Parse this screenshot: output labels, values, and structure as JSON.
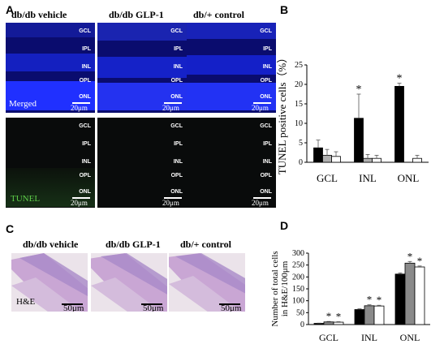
{
  "panels": {
    "a": {
      "label": "A",
      "columns": [
        "db/db vehicle",
        "db/db GLP-1",
        "db/+ control"
      ],
      "layers": [
        "GCL",
        "IPL",
        "INL",
        "OPL",
        "ONL"
      ],
      "row_labels": [
        "Merged",
        "TUNEL"
      ],
      "scale": "20μm",
      "colors": {
        "merged": "#0a0c6e",
        "nuclei": "#1f2dff",
        "tunel_text": "#5fcf4a"
      }
    },
    "b": {
      "label": "B"
    },
    "c": {
      "label": "C",
      "columns": [
        "db/db vehicle",
        "db/db GLP-1",
        "db/+ control"
      ],
      "stain_label": "H&E",
      "scale": "50μm",
      "colors": {
        "tissue": "#c9a6d4",
        "band": "#a989c8"
      }
    },
    "d": {
      "label": "D"
    }
  },
  "chart_data": [
    {
      "type": "bar",
      "panel": "B",
      "categories": [
        "GCL",
        "INL",
        "ONL"
      ],
      "ylabel": "TUNEL positive cells（%）",
      "ylim": [
        0,
        25
      ],
      "yticks": [
        0,
        5,
        10,
        15,
        20,
        25
      ],
      "series": [
        {
          "values": [
            3.7,
            11.3,
            19.5
          ],
          "errors": [
            2.0,
            6.2,
            0.8
          ],
          "color": "#000000"
        },
        {
          "values": [
            1.8,
            1.0,
            0
          ],
          "errors": [
            1.5,
            1.0,
            0
          ],
          "color": "#b0b0b0"
        },
        {
          "values": [
            1.5,
            1.0,
            1.0
          ],
          "errors": [
            1.2,
            0.8,
            0.8
          ],
          "color": "#ffffff"
        }
      ],
      "annotations": [
        {
          "category": "INL",
          "series": 0,
          "text": "*"
        },
        {
          "category": "ONL",
          "series": 0,
          "text": "*"
        }
      ],
      "grid": false
    },
    {
      "type": "bar",
      "panel": "D",
      "categories": [
        "GCL",
        "INL",
        "ONL"
      ],
      "ylabel": "Number of total cells in H&E/100μm",
      "ylim": [
        0,
        300
      ],
      "yticks": [
        0,
        50,
        100,
        150,
        200,
        250,
        300
      ],
      "series": [
        {
          "values": [
            5,
            63,
            212
          ],
          "errors": [
            1,
            3,
            5
          ],
          "color": "#000000"
        },
        {
          "values": [
            11,
            79,
            258
          ],
          "errors": [
            2,
            4,
            7
          ],
          "color": "#8a8a8a"
        },
        {
          "values": [
            10,
            78,
            242
          ],
          "errors": [
            2,
            3,
            4
          ],
          "color": "#ffffff"
        }
      ],
      "annotations": [
        {
          "category": "GCL",
          "series": 1,
          "text": "*"
        },
        {
          "category": "GCL",
          "series": 2,
          "text": "*"
        },
        {
          "category": "INL",
          "series": 1,
          "text": "*"
        },
        {
          "category": "INL",
          "series": 2,
          "text": "*"
        },
        {
          "category": "ONL",
          "series": 1,
          "text": "*"
        },
        {
          "category": "ONL",
          "series": 2,
          "text": "*"
        }
      ],
      "grid": false
    }
  ]
}
